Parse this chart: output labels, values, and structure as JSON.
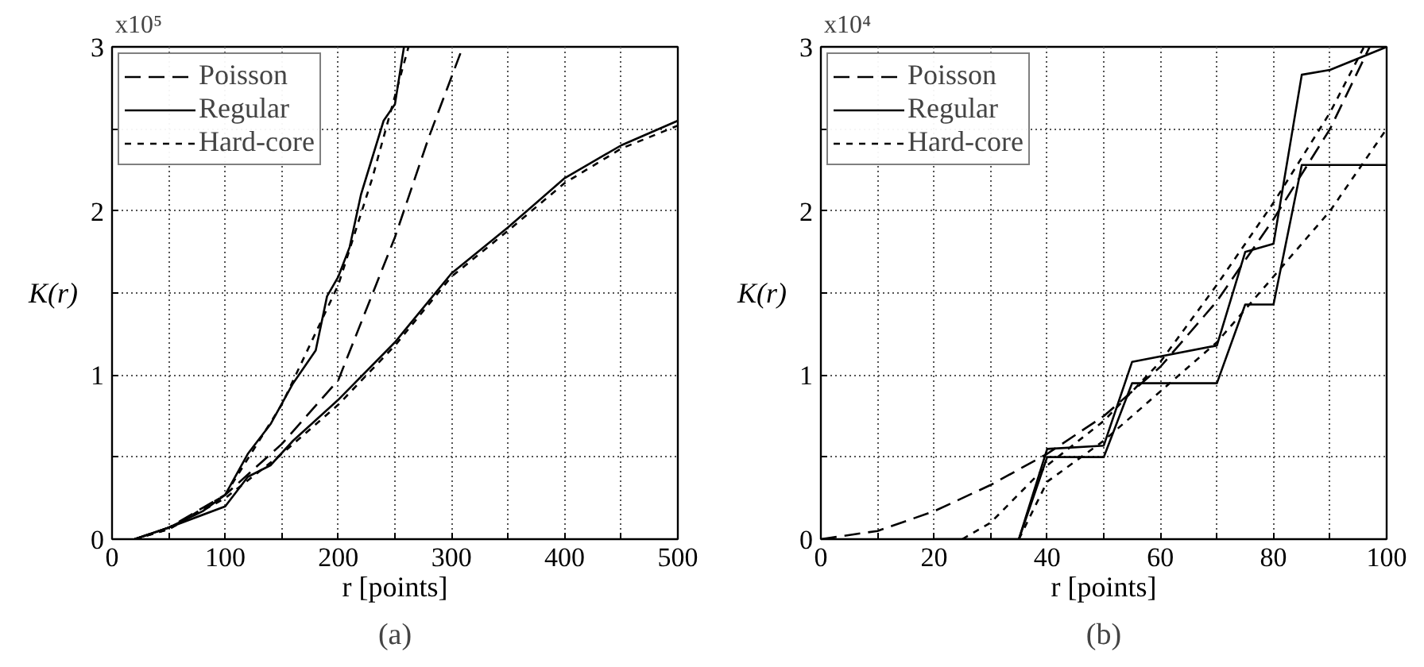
{
  "chart_data": [
    {
      "type": "line",
      "xlabel": "r [points]",
      "ylabel": "K(r)",
      "annotations": [
        "x10⁵",
        "(a)"
      ],
      "xlim": [
        0,
        500
      ],
      "ylim": [
        0,
        3
      ],
      "xticks": [
        0,
        {
          "value": 50,
          "label": null
        },
        100,
        {
          "value": 150,
          "label": null
        },
        200,
        {
          "value": 250,
          "label": null
        },
        300,
        {
          "value": 350,
          "label": null
        },
        400,
        {
          "value": 450,
          "label": null
        },
        500
      ],
      "yticks": [
        0,
        {
          "value": 0.5,
          "label": null
        },
        1,
        {
          "value": 1.5,
          "label": null
        },
        2,
        {
          "value": 2.5,
          "label": null
        },
        3
      ],
      "grid": true,
      "legend": "top left",
      "series": [
        {
          "name": "Poisson",
          "color": "#000000",
          "line_style": "longdash",
          "x": [
            20,
            50,
            100,
            150,
            200,
            250,
            280,
            310
          ],
          "values": [
            0,
            0.07,
            0.27,
            0.58,
            0.97,
            1.84,
            2.45,
            3.0
          ]
        },
        {
          "name": "Regular",
          "color": "#000000",
          "line_style": "solid",
          "x": [
            20,
            50,
            80,
            100,
            120,
            140,
            160,
            180,
            190,
            200,
            210,
            220,
            240,
            250,
            258
          ],
          "values": [
            0,
            0.07,
            0.17,
            0.27,
            0.52,
            0.7,
            0.95,
            1.15,
            1.48,
            1.6,
            1.78,
            2.1,
            2.55,
            2.65,
            3.0
          ]
        },
        {
          "name": "Hard-core",
          "color": "#000000",
          "line_style": "dashed",
          "x": [
            20,
            50,
            100,
            150,
            200,
            230,
            250,
            262
          ],
          "values": [
            0,
            0.06,
            0.27,
            0.82,
            1.55,
            2.2,
            2.7,
            3.0
          ]
        },
        {
          "color": "#000000",
          "line_style": "solid",
          "x": [
            20,
            50,
            100,
            120,
            140,
            160,
            200,
            250,
            300,
            350,
            400,
            450,
            500
          ],
          "values": [
            0,
            0.07,
            0.2,
            0.38,
            0.45,
            0.6,
            0.85,
            1.2,
            1.62,
            1.9,
            2.2,
            2.4,
            2.55
          ]
        },
        {
          "color": "#000000",
          "line_style": "dashed",
          "x": [
            20,
            50,
            100,
            150,
            200,
            250,
            300,
            350,
            400,
            450,
            500
          ],
          "values": [
            0,
            0.06,
            0.25,
            0.52,
            0.82,
            1.18,
            1.6,
            1.88,
            2.17,
            2.38,
            2.52
          ]
        }
      ]
    },
    {
      "type": "line",
      "xlabel": "r [points]",
      "ylabel": "K(r)",
      "annotations": [
        "x10⁴",
        "(b)"
      ],
      "xlim": [
        0,
        100
      ],
      "ylim": [
        0,
        3
      ],
      "xticks": [
        0,
        {
          "value": 10,
          "label": null
        },
        20,
        {
          "value": 30,
          "label": null
        },
        40,
        {
          "value": 50,
          "label": null
        },
        60,
        {
          "value": 70,
          "label": null
        },
        80,
        {
          "value": 90,
          "label": null
        },
        100
      ],
      "yticks": [
        0,
        {
          "value": 0.5,
          "label": null
        },
        1,
        {
          "value": 1.5,
          "label": null
        },
        2,
        {
          "value": 2.5,
          "label": null
        },
        3
      ],
      "grid": true,
      "legend": "top left",
      "series": [
        {
          "name": "Poisson",
          "color": "#000000",
          "line_style": "longdash",
          "x": [
            0,
            10,
            20,
            30,
            40,
            50,
            60,
            70,
            80,
            90,
            97
          ],
          "values": [
            0,
            0.05,
            0.17,
            0.33,
            0.52,
            0.75,
            1.05,
            1.45,
            1.95,
            2.5,
            3.0
          ]
        },
        {
          "name": "Regular",
          "color": "#000000",
          "line_style": "solid",
          "x": [
            20,
            35,
            40,
            50,
            55,
            70,
            75,
            80,
            85,
            90,
            100
          ],
          "values": [
            0,
            0,
            0.55,
            0.57,
            1.08,
            1.18,
            1.75,
            1.8,
            2.83,
            2.86,
            3.0
          ]
        },
        {
          "name": "Hard-core",
          "color": "#000000",
          "line_style": "dashed",
          "x": [
            25,
            30,
            40,
            50,
            60,
            70,
            80,
            90,
            96
          ],
          "values": [
            0,
            0.1,
            0.45,
            0.72,
            1.08,
            1.55,
            2.05,
            2.6,
            3.0
          ]
        },
        {
          "color": "#000000",
          "line_style": "solid",
          "x": [
            35,
            40,
            50,
            55,
            70,
            75,
            80,
            85,
            100
          ],
          "values": [
            0,
            0.5,
            0.5,
            0.95,
            0.95,
            1.43,
            1.43,
            2.28,
            2.28
          ]
        },
        {
          "color": "#000000",
          "line_style": "dashed",
          "x": [
            35,
            40,
            50,
            60,
            70,
            80,
            90,
            100
          ],
          "values": [
            0,
            0.35,
            0.6,
            0.9,
            1.2,
            1.6,
            2.0,
            2.5
          ]
        }
      ]
    }
  ]
}
